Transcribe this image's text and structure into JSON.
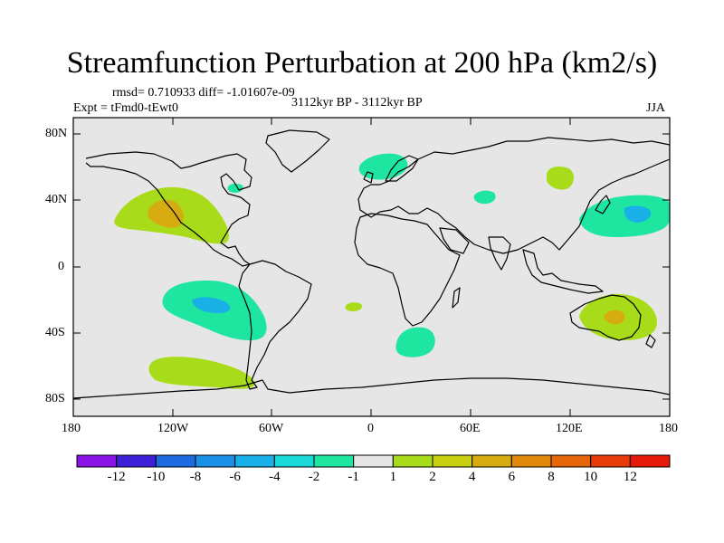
{
  "title": "Streamfunction Perturbation at 200 hPa (km2/s)",
  "stats": "rmsd= 0.710933 diff= -1.01607e-09",
  "experiment": "Expt = tFmd0-tEwt0",
  "period": "3112kyr BP - 3112kyr BP",
  "season": "JJA",
  "lat_labels": [
    "80N",
    "40N",
    "0",
    "40S",
    "80S"
  ],
  "lon_labels": [
    "180",
    "120W",
    "60W",
    "0",
    "60E",
    "120E",
    "180"
  ],
  "colorbar": {
    "labels": [
      "-12",
      "-10",
      "-8",
      "-6",
      "-4",
      "-2",
      "-1",
      "1",
      "2",
      "4",
      "6",
      "8",
      "10",
      "12"
    ],
    "colors": [
      "#8a14e6",
      "#3c1fd6",
      "#1e6be0",
      "#1a8fe6",
      "#18b0e6",
      "#1ad8d8",
      "#1ee6a0",
      "#e6e6e6",
      "#a8dc1a",
      "#c8d010",
      "#d6ac10",
      "#e08a0c",
      "#e6640a",
      "#e63c0a",
      "#e61a0a"
    ]
  },
  "map_background": "#e6e6e6",
  "anomalies": [
    {
      "region": "NE Pacific",
      "level": "2",
      "peak": "4"
    },
    {
      "region": "SE Pacific",
      "level": "-2",
      "peak": "-4"
    },
    {
      "region": "South Pacific",
      "level": "2"
    },
    {
      "region": "NW Pacific",
      "level": "-2",
      "peak": "-4"
    },
    {
      "region": "Australia",
      "level": "2",
      "peak": "4"
    },
    {
      "region": "South Atlantic",
      "level": "-2"
    },
    {
      "region": "Scandinavia",
      "level": "-2"
    },
    {
      "region": "Mongolia",
      "level": "2"
    },
    {
      "region": "Caspian",
      "level": "-2"
    },
    {
      "region": "Hudson Bay",
      "level": "-2"
    },
    {
      "region": "Tropical Atlantic",
      "level": "2"
    }
  ]
}
